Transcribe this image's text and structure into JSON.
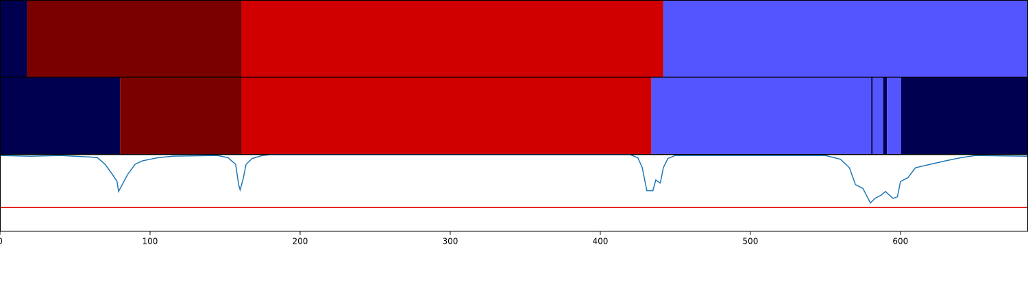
{
  "chart_data": {
    "type": "segmentation",
    "xlim": [
      0,
      685
    ],
    "xticks": [
      0,
      100,
      200,
      300,
      400,
      500,
      600
    ],
    "rows": [
      {
        "starts": [
          0,
          18,
          161,
          442
        ],
        "ends": [
          18,
          161,
          442,
          685
        ],
        "colors": [
          "#000050",
          "#7a0000",
          "#d00000",
          "#5555ff"
        ]
      },
      {
        "starts": [
          0,
          80,
          161,
          434,
          580.5,
          581.5,
          588.5,
          591,
          600.5
        ],
        "ends": [
          80,
          161,
          434,
          580.5,
          581.5,
          588.5,
          591,
          600.5,
          685
        ],
        "colors": [
          "#000050",
          "#7a0000",
          "#d00000",
          "#5555ff",
          "#000050",
          "#5555ff",
          "#000050",
          "#5555ff",
          "#000050"
        ]
      }
    ],
    "line": {
      "color": "#1f77b4",
      "ylim": [
        0,
        1
      ],
      "threshold": 0.31,
      "threshold_color": "#e00000",
      "x": [
        0,
        20,
        40,
        60,
        65,
        70,
        75,
        78,
        79,
        82,
        85,
        90,
        95,
        100,
        105,
        115,
        145,
        152,
        157,
        159,
        160,
        162,
        164,
        168,
        175,
        180,
        420,
        425,
        428,
        431,
        435,
        437,
        440,
        442,
        445,
        450,
        550,
        560,
        566,
        570,
        575,
        580,
        583,
        587,
        590,
        595,
        598,
        600,
        605,
        610,
        620,
        630,
        640,
        650,
        685
      ],
      "values": [
        0.99,
        0.98,
        0.99,
        0.97,
        0.96,
        0.875,
        0.74,
        0.65,
        0.52,
        0.63,
        0.74,
        0.875,
        0.92,
        0.94,
        0.96,
        0.98,
        0.99,
        0.96,
        0.875,
        0.61,
        0.54,
        0.68,
        0.875,
        0.95,
        0.99,
        1.0,
        1.0,
        0.96,
        0.83,
        0.53,
        0.53,
        0.67,
        0.63,
        0.83,
        0.95,
        0.99,
        0.99,
        0.94,
        0.83,
        0.61,
        0.56,
        0.37,
        0.43,
        0.47,
        0.52,
        0.43,
        0.45,
        0.65,
        0.7,
        0.83,
        0.875,
        0.92,
        0.96,
        0.99,
        0.98
      ]
    }
  }
}
